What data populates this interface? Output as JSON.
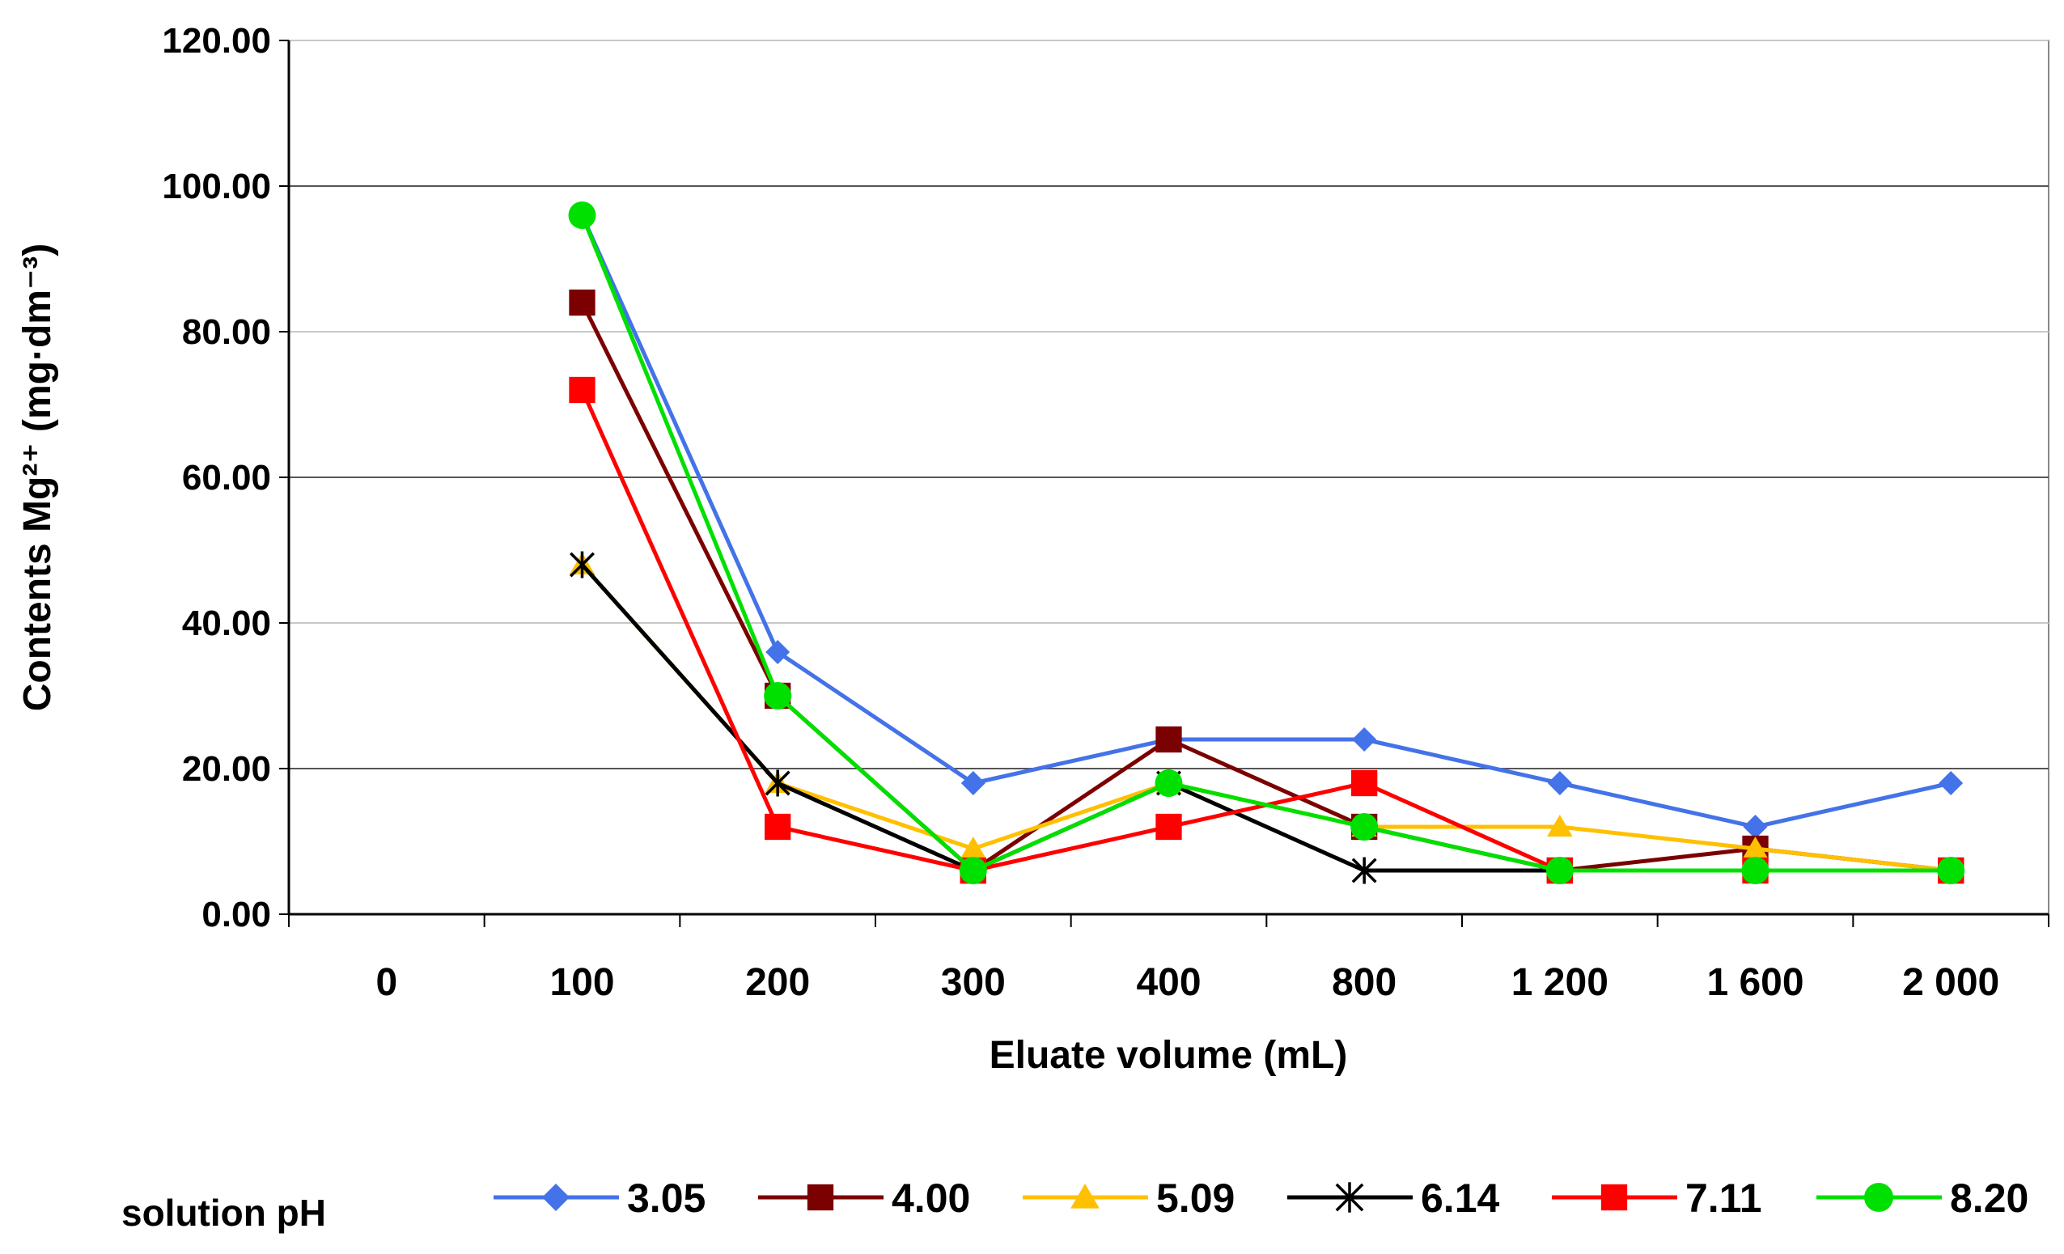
{
  "chart_data": {
    "type": "line",
    "xlabel": "Eluate volume (mL)",
    "ylabel": "Contents Mg²⁺ (mg·dm⁻³)",
    "ylim": [
      0,
      120
    ],
    "yticks": [
      "0.00",
      "20.00",
      "40.00",
      "60.00",
      "80.00",
      "100.00",
      "120.00"
    ],
    "categories": [
      "0",
      "100",
      "200",
      "300",
      "400",
      "800",
      "1 200",
      "1 600",
      "2 000"
    ],
    "grid": "horizontal",
    "legend_title": "solution pH",
    "legend_position": "bottom",
    "series": [
      {
        "name": "3.05",
        "color": "#4472E8",
        "marker": "diamond",
        "values": [
          null,
          96,
          36,
          18,
          24,
          24,
          18,
          12,
          18
        ]
      },
      {
        "name": "4.00",
        "color": "#7B0000",
        "marker": "square",
        "values": [
          null,
          84,
          30,
          6,
          24,
          12,
          6,
          9,
          6
        ]
      },
      {
        "name": "5.09",
        "color": "#FFC000",
        "marker": "triangle",
        "values": [
          null,
          48,
          18,
          9,
          18,
          12,
          12,
          9,
          6
        ]
      },
      {
        "name": "6.14",
        "color": "#000000",
        "marker": "star",
        "values": [
          null,
          48,
          18,
          6,
          18,
          6,
          6,
          6,
          6
        ]
      },
      {
        "name": "7.11",
        "color": "#FF0000",
        "marker": "square",
        "values": [
          null,
          72,
          12,
          6,
          12,
          18,
          6,
          6,
          6
        ]
      },
      {
        "name": "8.20",
        "color": "#00E000",
        "marker": "circle",
        "values": [
          null,
          96,
          30,
          6,
          18,
          12,
          6,
          6,
          6
        ]
      }
    ]
  }
}
